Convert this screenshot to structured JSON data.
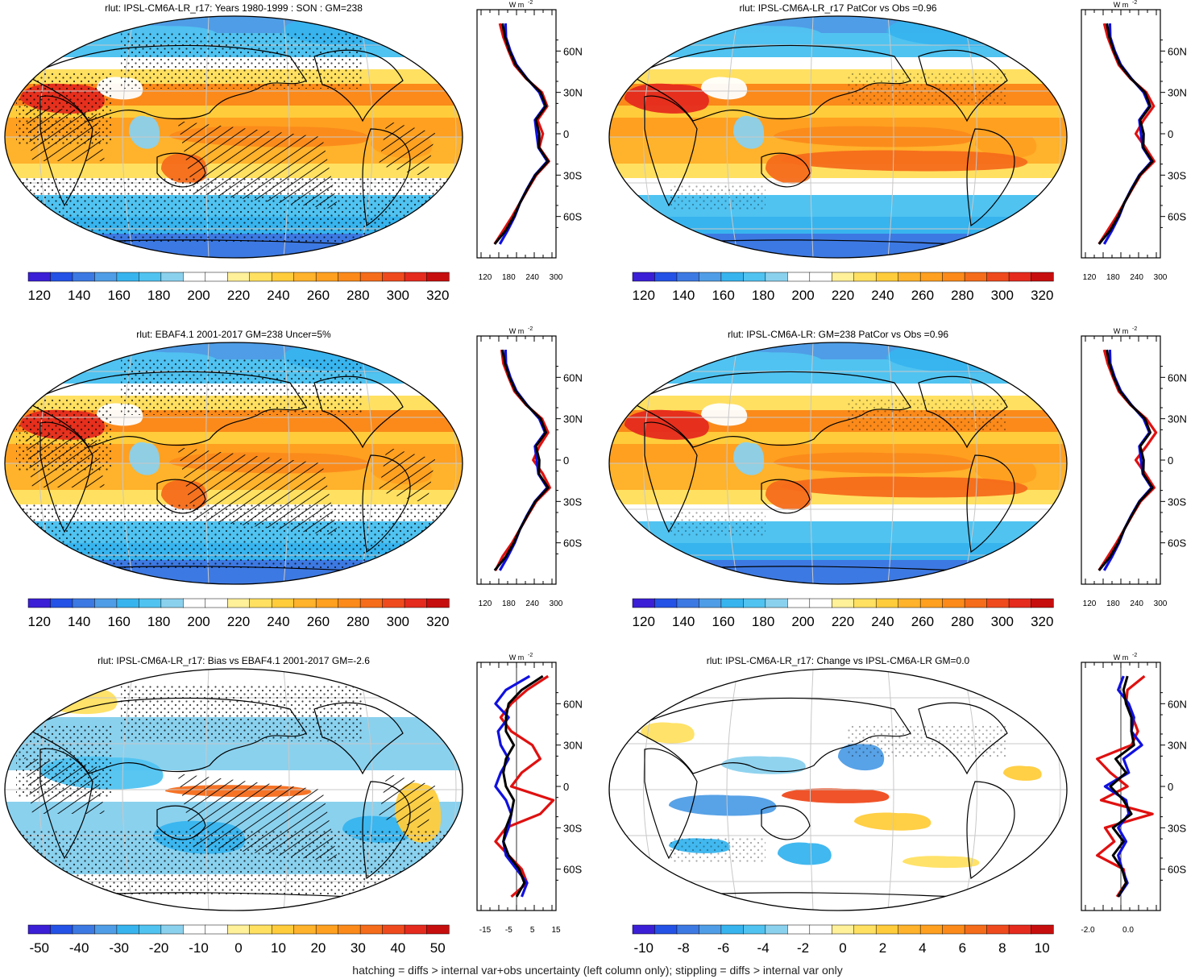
{
  "footer": "hatching = diffs > internal var+obs uncertainty (left column only); stippling = diffs > internal var only",
  "palettes": {
    "abs": [
      "#3b1fd6",
      "#2452e6",
      "#3d79e2",
      "#4f9de6",
      "#37b4ee",
      "#50c3f1",
      "#8ad1ee",
      "#ffffff",
      "#ffffff",
      "#fff09a",
      "#ffe061",
      "#ffcc3b",
      "#ffb22b",
      "#ffa020",
      "#fb8a1a",
      "#f56c1a",
      "#ef4a1e",
      "#e52a1e",
      "#c70e0e"
    ],
    "bias": [
      "#3b1fd6",
      "#2452e6",
      "#3d79e2",
      "#4f9de6",
      "#37b4ee",
      "#50c3f1",
      "#8ad1ee",
      "#ffffff",
      "#ffffff",
      "#fff09a",
      "#ffe061",
      "#ffcc3b",
      "#ffb22b",
      "#ffa020",
      "#fb8a1a",
      "#f56c1a",
      "#ef4a1e",
      "#e52a1e",
      "#c70e0e"
    ]
  },
  "panels": [
    {
      "title": "rlut: IPSL-CM6A-LR_r17: Years 1980-1999 : SON : GM=238",
      "kind": "abs",
      "colorbar_labels": [
        "120",
        "140",
        "160",
        "180",
        "200",
        "220",
        "240",
        "260",
        "280",
        "300",
        "320"
      ],
      "profile_ticks": [
        "120",
        "180",
        "240",
        "300"
      ],
      "profile_units": "W m",
      "lat_labels": [
        "60N",
        "30N",
        "0",
        "30S",
        "60S"
      ]
    },
    {
      "title": "rlut: IPSL-CM6A-LR_r17 PatCor vs Obs =0.96",
      "kind": "abs",
      "colorbar_labels": [
        "120",
        "140",
        "160",
        "180",
        "200",
        "220",
        "240",
        "260",
        "280",
        "300",
        "320"
      ],
      "profile_ticks": [
        "120",
        "180",
        "240",
        "300"
      ],
      "profile_units": "W m",
      "lat_labels": [
        "60N",
        "30N",
        "0",
        "30S",
        "60S"
      ]
    },
    {
      "title": "rlut: EBAF4.1 2001-2017 GM=238 Uncer=5%",
      "kind": "abs",
      "colorbar_labels": [
        "120",
        "140",
        "160",
        "180",
        "200",
        "220",
        "240",
        "260",
        "280",
        "300",
        "320"
      ],
      "profile_ticks": [
        "120",
        "180",
        "240",
        "300"
      ],
      "profile_units": "W m",
      "lat_labels": [
        "60N",
        "30N",
        "0",
        "30S",
        "60S"
      ]
    },
    {
      "title": "rlut: IPSL-CM6A-LR: GM=238 PatCor vs Obs =0.96",
      "kind": "abs",
      "colorbar_labels": [
        "120",
        "140",
        "160",
        "180",
        "200",
        "220",
        "240",
        "260",
        "280",
        "300",
        "320"
      ],
      "profile_ticks": [
        "120",
        "180",
        "240",
        "300"
      ],
      "profile_units": "W m",
      "lat_labels": [
        "60N",
        "30N",
        "0",
        "30S",
        "60S"
      ]
    },
    {
      "title": "rlut: IPSL-CM6A-LR_r17: Bias vs EBAF4.1 2001-2017  GM=-2.6",
      "kind": "bias",
      "colorbar_labels": [
        "-50",
        "-40",
        "-30",
        "-20",
        "-10",
        "0",
        "10",
        "20",
        "30",
        "40",
        "50"
      ],
      "profile_ticks": [
        "-15",
        "-5",
        "5",
        "15"
      ],
      "profile_units": "W m",
      "lat_labels": [
        "60N",
        "30N",
        "0",
        "30S",
        "60S"
      ]
    },
    {
      "title": "rlut: IPSL-CM6A-LR_r17: Change vs IPSL-CM6A-LR GM=0.0",
      "kind": "bias",
      "colorbar_labels": [
        "-10",
        "-8",
        "-6",
        "-4",
        "-2",
        "0",
        "2",
        "4",
        "6",
        "8",
        "10"
      ],
      "profile_ticks": [
        "-2.0",
        "0.0"
      ],
      "profile_units": "W m",
      "lat_labels": [
        "60N",
        "30N",
        "0",
        "30S",
        "60S"
      ]
    }
  ],
  "chart_data": [
    {
      "type": "line",
      "title": "rlut: IPSL-CM6A-LR_r17: Years 1980-1999 : SON : GM=238",
      "xlim": [
        120,
        300
      ],
      "ylabel": "",
      "xlabel": "W m-2",
      "series": [
        {
          "color": "#e01010",
          "lat": [
            80,
            70,
            60,
            50,
            40,
            30,
            20,
            10,
            0,
            -10,
            -20,
            -30,
            -40,
            -50,
            -60,
            -70,
            -80
          ],
          "values": [
            172,
            180,
            192,
            205,
            232,
            268,
            280,
            258,
            270,
            262,
            284,
            255,
            236,
            218,
            200,
            180,
            160
          ]
        },
        {
          "color": "#1010e0",
          "lat": [
            80,
            70,
            60,
            50,
            40,
            30,
            20,
            10,
            0,
            -10,
            -20,
            -30,
            -40,
            -50,
            -60,
            -70,
            -80
          ],
          "values": [
            185,
            186,
            196,
            210,
            234,
            262,
            275,
            252,
            256,
            260,
            280,
            252,
            234,
            218,
            206,
            190,
            172
          ]
        },
        {
          "color": "#000000",
          "lat": [
            80,
            70,
            60,
            50,
            40,
            30,
            20,
            10,
            0,
            -10,
            -20,
            -30,
            -40,
            -50,
            -60,
            -70,
            -80
          ],
          "values": [
            178,
            184,
            194,
            208,
            233,
            265,
            277,
            254,
            262,
            261,
            282,
            253,
            235,
            218,
            204,
            186,
            160
          ]
        }
      ]
    },
    {
      "type": "line",
      "title": "rlut: IPSL-CM6A-LR_r17 PatCor vs Obs =0.96",
      "xlim": [
        120,
        300
      ],
      "ylabel": "",
      "xlabel": "W m-2",
      "series": [
        {
          "color": "#e01010",
          "lat": [
            80,
            70,
            60,
            50,
            40,
            30,
            20,
            10,
            0,
            -10,
            -20,
            -30,
            -40,
            -50,
            -60,
            -70,
            -80
          ],
          "values": [
            172,
            180,
            192,
            205,
            232,
            268,
            285,
            262,
            244,
            266,
            286,
            255,
            236,
            218,
            200,
            180,
            160
          ]
        },
        {
          "color": "#1010e0",
          "lat": [
            80,
            70,
            60,
            50,
            40,
            30,
            20,
            10,
            0,
            -10,
            -20,
            -30,
            -40,
            -50,
            -60,
            -70,
            -80
          ],
          "values": [
            185,
            186,
            196,
            210,
            234,
            262,
            275,
            252,
            256,
            260,
            280,
            252,
            234,
            218,
            206,
            190,
            172
          ]
        },
        {
          "color": "#000000",
          "lat": [
            80,
            70,
            60,
            50,
            40,
            30,
            20,
            10,
            0,
            -10,
            -20,
            -30,
            -40,
            -50,
            -60,
            -70,
            -80
          ],
          "values": [
            178,
            184,
            194,
            208,
            233,
            265,
            277,
            254,
            262,
            261,
            282,
            253,
            235,
            218,
            204,
            186,
            160
          ]
        }
      ]
    },
    {
      "type": "line",
      "title": "rlut: EBAF4.1 2001-2017 GM=238 Uncer=5%",
      "xlim": [
        120,
        300
      ],
      "ylabel": "",
      "xlabel": "W m-2",
      "series": [
        {
          "color": "#e01010",
          "lat": [
            80,
            70,
            60,
            50,
            40,
            30,
            20,
            10,
            0,
            -10,
            -20,
            -30,
            -40,
            -50,
            -60,
            -70,
            -80
          ],
          "values": [
            176,
            180,
            192,
            205,
            232,
            268,
            282,
            262,
            248,
            270,
            286,
            255,
            236,
            218,
            200,
            178,
            162
          ]
        },
        {
          "color": "#1010e0",
          "lat": [
            80,
            70,
            60,
            50,
            40,
            30,
            20,
            10,
            0,
            -10,
            -20,
            -30,
            -40,
            -50,
            -60,
            -70,
            -80
          ],
          "values": [
            185,
            186,
            196,
            210,
            234,
            262,
            275,
            252,
            256,
            260,
            280,
            252,
            234,
            218,
            206,
            190,
            172
          ]
        },
        {
          "color": "#000000",
          "lat": [
            80,
            70,
            60,
            50,
            40,
            30,
            20,
            10,
            0,
            -10,
            -20,
            -30,
            -40,
            -50,
            -60,
            -70,
            -80
          ],
          "values": [
            178,
            184,
            194,
            208,
            233,
            265,
            277,
            254,
            262,
            261,
            282,
            253,
            235,
            218,
            204,
            186,
            160
          ]
        }
      ]
    },
    {
      "type": "line",
      "title": "rlut: IPSL-CM6A-LR: GM=238 PatCor vs Obs =0.96",
      "xlim": [
        120,
        300
      ],
      "ylabel": "",
      "xlabel": "W m-2",
      "series": [
        {
          "color": "#e01010",
          "lat": [
            80,
            70,
            60,
            50,
            40,
            30,
            20,
            10,
            0,
            -10,
            -20,
            -30,
            -40,
            -50,
            -60,
            -70,
            -80
          ],
          "values": [
            172,
            180,
            192,
            205,
            232,
            268,
            290,
            268,
            244,
            266,
            286,
            255,
            236,
            218,
            200,
            180,
            160
          ]
        },
        {
          "color": "#1010e0",
          "lat": [
            80,
            70,
            60,
            50,
            40,
            30,
            20,
            10,
            0,
            -10,
            -20,
            -30,
            -40,
            -50,
            -60,
            -70,
            -80
          ],
          "values": [
            185,
            186,
            196,
            210,
            234,
            262,
            275,
            252,
            256,
            260,
            280,
            252,
            234,
            218,
            206,
            190,
            172
          ]
        },
        {
          "color": "#000000",
          "lat": [
            80,
            70,
            60,
            50,
            40,
            30,
            20,
            10,
            0,
            -10,
            -20,
            -30,
            -40,
            -50,
            -60,
            -70,
            -80
          ],
          "values": [
            178,
            184,
            194,
            208,
            233,
            265,
            277,
            254,
            262,
            261,
            282,
            253,
            235,
            218,
            204,
            186,
            160
          ]
        }
      ]
    },
    {
      "type": "line",
      "title": "rlut: IPSL-CM6A-LR_r17: Bias vs EBAF4.1 2001-2017  GM=-2.6",
      "xlim": [
        -15,
        15
      ],
      "ylabel": "",
      "xlabel": "W m-2",
      "series": [
        {
          "color": "#e01010",
          "lat": [
            80,
            70,
            60,
            50,
            40,
            30,
            20,
            10,
            0,
            -10,
            -20,
            -30,
            -40,
            -50,
            -60,
            -70,
            -80
          ],
          "values": [
            12,
            4,
            -2,
            -6,
            -2,
            6,
            9,
            2,
            -2,
            14,
            9,
            -4,
            -8,
            -3,
            2,
            4,
            -2
          ]
        },
        {
          "color": "#1010e0",
          "lat": [
            80,
            70,
            60,
            50,
            40,
            30,
            20,
            10,
            0,
            -10,
            -20,
            -30,
            -40,
            -50,
            -60,
            -70,
            -80
          ],
          "values": [
            5,
            -4,
            -8,
            -3,
            -7,
            -6,
            -3,
            -6,
            -8,
            -4,
            -2,
            -3,
            -5,
            -4,
            0,
            4,
            2
          ]
        },
        {
          "color": "#000000",
          "lat": [
            80,
            70,
            60,
            50,
            40,
            30,
            20,
            10,
            0,
            -10,
            -20,
            -30,
            -40,
            -50,
            -60,
            -70,
            -80
          ],
          "values": [
            10,
            2,
            -3,
            -4,
            -4,
            -1,
            -4,
            -5,
            -4,
            -1,
            -2,
            -4,
            -5,
            -3,
            1,
            3,
            0
          ]
        }
      ]
    },
    {
      "type": "line",
      "title": "rlut: IPSL-CM6A-LR_r17: Change vs IPSL-CM6A-LR GM=0.0",
      "xlim": [
        -3,
        3
      ],
      "ylabel": "",
      "xlabel": "W m-2",
      "series": [
        {
          "color": "#e01010",
          "lat": [
            80,
            70,
            60,
            50,
            40,
            30,
            20,
            10,
            0,
            -10,
            -20,
            -30,
            -40,
            -50,
            -60,
            -70,
            -80
          ],
          "values": [
            1.8,
            0.5,
            0.4,
            0.9,
            1.3,
            0.8,
            -1.8,
            -0.8,
            0.5,
            -1.5,
            2.4,
            -1.2,
            -0.5,
            -1.8,
            0.2,
            0.4,
            -0.3
          ]
        },
        {
          "color": "#1010e0",
          "lat": [
            80,
            70,
            60,
            50,
            40,
            30,
            20,
            10,
            0,
            -10,
            -20,
            -30,
            -40,
            -50,
            -60,
            -70,
            -80
          ],
          "values": [
            0.2,
            -0.2,
            0.6,
            1.0,
            0.8,
            1.6,
            0.2,
            0.6,
            -1.2,
            0.4,
            0.6,
            -0.2,
            0.4,
            -0.2,
            0.1,
            0.5,
            -0.2
          ]
        },
        {
          "color": "#000000",
          "lat": [
            80,
            70,
            60,
            50,
            40,
            30,
            20,
            10,
            0,
            -10,
            -20,
            -30,
            -40,
            -50,
            -60,
            -70,
            -80
          ],
          "values": [
            0.5,
            0.2,
            0.4,
            0.8,
            0.8,
            1.0,
            -0.4,
            0.4,
            -0.8,
            0.2,
            0.8,
            -0.6,
            0.2,
            -0.6,
            0.1,
            0.4,
            -0.2
          ]
        }
      ]
    }
  ]
}
